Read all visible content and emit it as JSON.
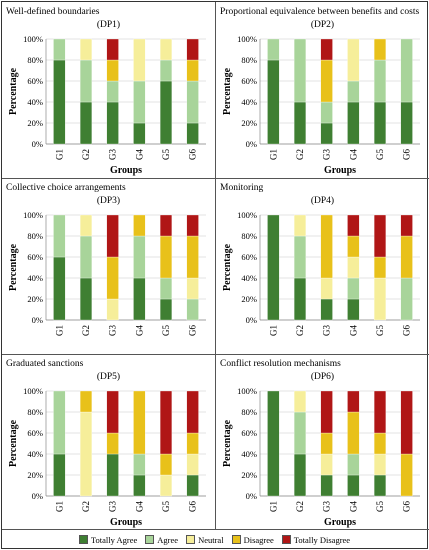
{
  "colors": {
    "Totally Agree": "#3f7f32",
    "Agree": "#a8d49a",
    "Neutral": "#f6ee9a",
    "Disagree": "#e8c11a",
    "Totally Disagree": "#b01616"
  },
  "legend": [
    "Totally Agree",
    "Agree",
    "Neutral",
    "Disagree",
    "Totally Disagree"
  ],
  "chart_data": [
    {
      "type": "bar",
      "stacked": true,
      "title": "Well-defined boundaries",
      "subtitle": "(DP1)",
      "xlabel": "Groups",
      "ylabel": "Percentage",
      "ylim": [
        0,
        100
      ],
      "yticks": [
        "0%",
        "20%",
        "40%",
        "60%",
        "80%",
        "100%"
      ],
      "categories": [
        "G1",
        "G2",
        "G3",
        "G4",
        "G5",
        "G6"
      ],
      "series": [
        {
          "name": "Totally Agree",
          "values": [
            80,
            40,
            40,
            20,
            60,
            20
          ]
        },
        {
          "name": "Agree",
          "values": [
            20,
            40,
            20,
            40,
            20,
            40
          ]
        },
        {
          "name": "Neutral",
          "values": [
            0,
            20,
            0,
            40,
            20,
            0
          ]
        },
        {
          "name": "Disagree",
          "values": [
            0,
            0,
            20,
            0,
            0,
            20
          ]
        },
        {
          "name": "Totally Disagree",
          "values": [
            0,
            0,
            20,
            0,
            0,
            20
          ]
        }
      ]
    },
    {
      "type": "bar",
      "stacked": true,
      "title": "Proportional equivalence between benefits and costs",
      "subtitle": "(DP2)",
      "xlabel": "Groups",
      "ylabel": "Percentage",
      "ylim": [
        0,
        100
      ],
      "yticks": [
        "0%",
        "20%",
        "40%",
        "60%",
        "80%",
        "100%"
      ],
      "categories": [
        "G1",
        "G2",
        "G3",
        "G4",
        "G5",
        "G6"
      ],
      "series": [
        {
          "name": "Totally Agree",
          "values": [
            80,
            40,
            20,
            40,
            40,
            40
          ]
        },
        {
          "name": "Agree",
          "values": [
            20,
            60,
            20,
            20,
            40,
            60
          ]
        },
        {
          "name": "Neutral",
          "values": [
            0,
            0,
            0,
            40,
            0,
            0
          ]
        },
        {
          "name": "Disagree",
          "values": [
            0,
            0,
            40,
            0,
            20,
            0
          ]
        },
        {
          "name": "Totally Disagree",
          "values": [
            0,
            0,
            20,
            0,
            0,
            0
          ]
        }
      ]
    },
    {
      "type": "bar",
      "stacked": true,
      "title": "Collective choice arrangements",
      "subtitle": "(DP3)",
      "xlabel": "",
      "ylabel": "Percentage",
      "ylim": [
        0,
        100
      ],
      "yticks": [
        "0%",
        "20%",
        "40%",
        "60%",
        "80%",
        "100%"
      ],
      "categories": [
        "G1",
        "G2",
        "G3",
        "G4",
        "G5",
        "G6"
      ],
      "series": [
        {
          "name": "Totally Agree",
          "values": [
            60,
            40,
            0,
            40,
            20,
            0
          ]
        },
        {
          "name": "Agree",
          "values": [
            40,
            40,
            0,
            40,
            20,
            20
          ]
        },
        {
          "name": "Neutral",
          "values": [
            0,
            20,
            20,
            0,
            0,
            20
          ]
        },
        {
          "name": "Disagree",
          "values": [
            0,
            0,
            40,
            20,
            40,
            40
          ]
        },
        {
          "name": "Totally Disagree",
          "values": [
            0,
            0,
            40,
            0,
            20,
            20
          ]
        }
      ]
    },
    {
      "type": "bar",
      "stacked": true,
      "title": "Monitoring",
      "subtitle": "(DP4)",
      "xlabel": "",
      "ylabel": "Percentage",
      "ylim": [
        0,
        100
      ],
      "yticks": [
        "0%",
        "20%",
        "40%",
        "60%",
        "80%",
        "100%"
      ],
      "categories": [
        "G1",
        "G2",
        "G3",
        "G4",
        "G5",
        "G6"
      ],
      "series": [
        {
          "name": "Totally Agree",
          "values": [
            100,
            40,
            20,
            20,
            0,
            0
          ]
        },
        {
          "name": "Agree",
          "values": [
            0,
            40,
            0,
            20,
            0,
            40
          ]
        },
        {
          "name": "Neutral",
          "values": [
            0,
            20,
            20,
            20,
            40,
            0
          ]
        },
        {
          "name": "Disagree",
          "values": [
            0,
            0,
            60,
            20,
            20,
            40
          ]
        },
        {
          "name": "Totally Disagree",
          "values": [
            0,
            0,
            0,
            20,
            40,
            20
          ]
        }
      ]
    },
    {
      "type": "bar",
      "stacked": true,
      "title": "Graduated sanctions",
      "subtitle": "(DP5)",
      "xlabel": "Groups",
      "ylabel": "Percentage",
      "ylim": [
        0,
        100
      ],
      "yticks": [
        "0%",
        "20%",
        "40%",
        "60%",
        "80%",
        "100%"
      ],
      "categories": [
        "G1",
        "G2",
        "G3",
        "G4",
        "G5",
        "G6"
      ],
      "series": [
        {
          "name": "Totally Agree",
          "values": [
            40,
            0,
            40,
            20,
            0,
            20
          ]
        },
        {
          "name": "Agree",
          "values": [
            60,
            0,
            0,
            20,
            0,
            0
          ]
        },
        {
          "name": "Neutral",
          "values": [
            0,
            80,
            0,
            0,
            20,
            20
          ]
        },
        {
          "name": "Disagree",
          "values": [
            0,
            20,
            20,
            60,
            20,
            20
          ]
        },
        {
          "name": "Totally Disagree",
          "values": [
            0,
            0,
            40,
            0,
            60,
            40
          ]
        }
      ]
    },
    {
      "type": "bar",
      "stacked": true,
      "title": "Conflict resolution mechanisms",
      "subtitle": "(DP6)",
      "xlabel": "Groups",
      "ylabel": "Percentage",
      "ylim": [
        0,
        100
      ],
      "yticks": [
        "0%",
        "20%",
        "40%",
        "60%",
        "80%",
        "100%"
      ],
      "categories": [
        "G1",
        "G2",
        "G3",
        "G4",
        "G5",
        "G6"
      ],
      "series": [
        {
          "name": "Totally Agree",
          "values": [
            100,
            40,
            20,
            20,
            20,
            0
          ]
        },
        {
          "name": "Agree",
          "values": [
            0,
            40,
            0,
            20,
            0,
            0
          ]
        },
        {
          "name": "Neutral",
          "values": [
            0,
            20,
            20,
            0,
            20,
            0
          ]
        },
        {
          "name": "Disagree",
          "values": [
            0,
            0,
            20,
            40,
            20,
            40
          ]
        },
        {
          "name": "Totally Disagree",
          "values": [
            0,
            0,
            40,
            20,
            40,
            60
          ]
        }
      ]
    }
  ]
}
